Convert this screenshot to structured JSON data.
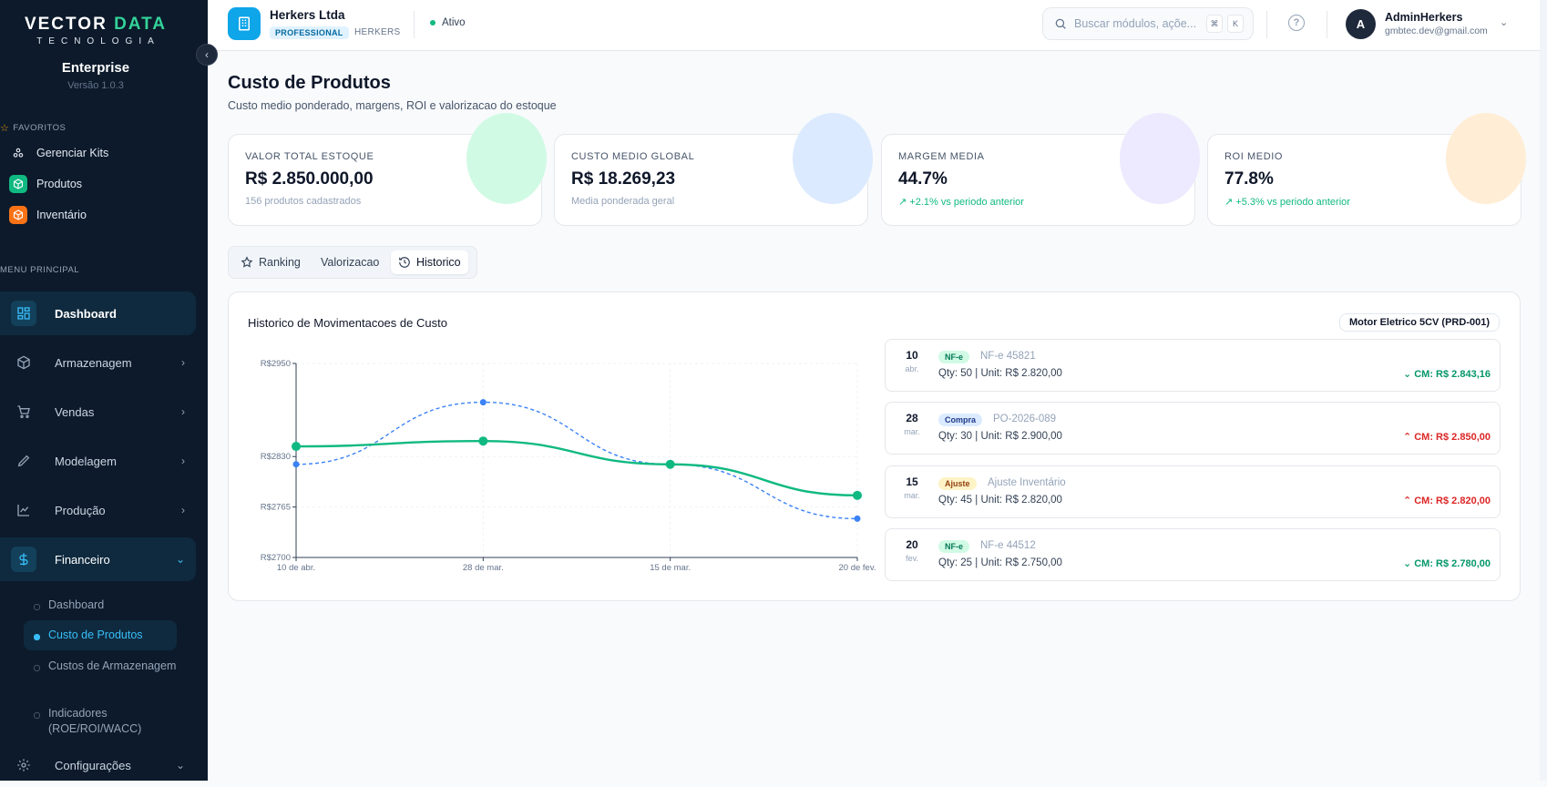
{
  "sidebar": {
    "brand_logo_a": "VECT",
    "brand_logo_o": "O",
    "brand_logo_b": "R ",
    "brand_logo_c": "DATA",
    "brand_sub": "TECNOLOGIA",
    "edition": "Enterprise",
    "version": "Versão 1.0.3",
    "favorites_label": "FAVORITOS",
    "favorites": [
      {
        "label": "Gerenciar Kits",
        "icon": "kits-icon"
      },
      {
        "label": "Produtos",
        "icon": "box-icon",
        "color": "#10b981"
      },
      {
        "label": "Inventário",
        "icon": "inventory-icon",
        "color": "#f97316"
      }
    ],
    "menu_label": "MENU PRINCIPAL",
    "menu": [
      {
        "label": "Dashboard",
        "icon": "dashboard-icon"
      },
      {
        "label": "Armazenagem",
        "icon": "package-icon"
      },
      {
        "label": "Vendas",
        "icon": "cart-icon"
      },
      {
        "label": "Modelagem",
        "icon": "pencil-icon"
      },
      {
        "label": "Produção",
        "icon": "chart-icon"
      },
      {
        "label": "Financeiro",
        "icon": "dollar-icon"
      },
      {
        "label": "Configurações",
        "icon": "gear-icon"
      }
    ],
    "financeiro_sub": [
      "Dashboard",
      "Custo de Produtos",
      "Custos de Armazenagem",
      "Indicadores (ROE/ROI/WACC)"
    ]
  },
  "topbar": {
    "company_name": "Herkers Ltda",
    "plan": "PROFESSIONAL",
    "tenant": "HERKERS",
    "status": "Ativo",
    "search_placeholder": "Buscar módulos, açõe...",
    "kbd_1": "⌘",
    "kbd_2": "K",
    "help": "?",
    "avatar_letter": "A",
    "user_name": "AdminHerkers",
    "user_email": "gmbtec.dev@gmail.com"
  },
  "page": {
    "title": "Custo de Produtos",
    "subtitle": "Custo medio ponderado, margens, ROI e valorizacao do estoque"
  },
  "kpis": [
    {
      "label": "VALOR TOTAL ESTOQUE",
      "value": "R$ 2.850.000,00",
      "note": "156 produtos cadastrados",
      "accent": "#d1fae5"
    },
    {
      "label": "CUSTO MEDIO GLOBAL",
      "value": "R$ 18.269,23",
      "note": "Media ponderada geral",
      "accent": "#dbeafe"
    },
    {
      "label": "MARGEM MEDIA",
      "value": "44.7%",
      "note": "↗ +2.1% vs periodo anterior",
      "accent": "#ede9fe"
    },
    {
      "label": "ROI MEDIO",
      "value": "77.8%",
      "note": "↗ +5.3% vs periodo anterior",
      "accent": "#ffedd5"
    }
  ],
  "tabs": [
    "Ranking",
    "Valorizacao",
    "Historico"
  ],
  "chart_panel": {
    "title": "Historico de Movimentacoes de Custo",
    "product": "Motor Eletrico 5CV (PRD-001)"
  },
  "chart_data": {
    "type": "line",
    "categories": [
      "10 de abr.",
      "28 de mar.",
      "15 de mar.",
      "20 de fev."
    ],
    "y_ticks": [
      "R$2950",
      "R$2830",
      "R$2765",
      "R$2700"
    ],
    "y_tick_values": [
      2950,
      2830,
      2765,
      2700
    ],
    "ylim": [
      2700,
      2950
    ],
    "series": [
      {
        "values": [
          2843.16,
          2850.0,
          2820.0,
          2780.0
        ],
        "color": "#10b981",
        "style": "solid"
      },
      {
        "values": [
          2820.0,
          2900.0,
          2820.0,
          2750.0
        ],
        "color": "#3b82f6",
        "style": "dashed"
      }
    ],
    "grid": true
  },
  "history": [
    {
      "day": "10",
      "month": "abr.",
      "type": "NF-e",
      "doc": "NF-e 45821",
      "qty": "Qty: 50 | Unit: R$ 2.820,00",
      "cm": "CM: R$ 2.843,16",
      "dir": "down",
      "arrow": "⌄"
    },
    {
      "day": "28",
      "month": "mar.",
      "type": "Compra",
      "doc": "PO-2026-089",
      "qty": "Qty: 30 | Unit: R$ 2.900,00",
      "cm": "CM: R$ 2.850,00",
      "dir": "up",
      "arrow": "⌃"
    },
    {
      "day": "15",
      "month": "mar.",
      "type": "Ajuste",
      "doc": "Ajuste Inventário",
      "qty": "Qty: 45 | Unit: R$ 2.820,00",
      "cm": "CM: R$ 2.820,00",
      "dir": "up",
      "arrow": "⌃"
    },
    {
      "day": "20",
      "month": "fev.",
      "type": "NF-e",
      "doc": "NF-e 44512",
      "qty": "Qty: 25 | Unit: R$ 2.750,00",
      "cm": "CM: R$ 2.780,00",
      "dir": "down",
      "arrow": "⌄"
    }
  ]
}
